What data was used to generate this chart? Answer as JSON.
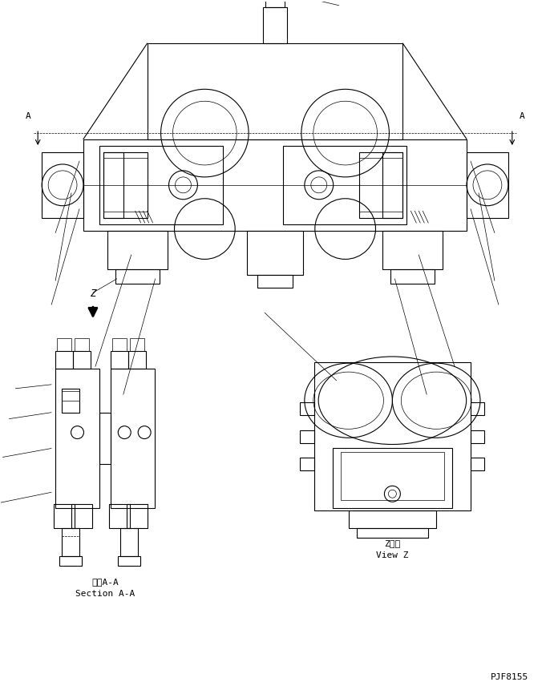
{
  "bg_color": "#ffffff",
  "line_color": "#000000",
  "lw": 0.8,
  "tlw": 0.5,
  "fig_width": 6.86,
  "fig_height": 8.71,
  "dpi": 100,
  "label_section_aa_jp": "断面A-A",
  "label_section_aa_en": "Section A-A",
  "label_view_z_jp": "Z　視",
  "label_view_z_en": "View Z",
  "label_z": "Z",
  "part_number": "PJF8155"
}
